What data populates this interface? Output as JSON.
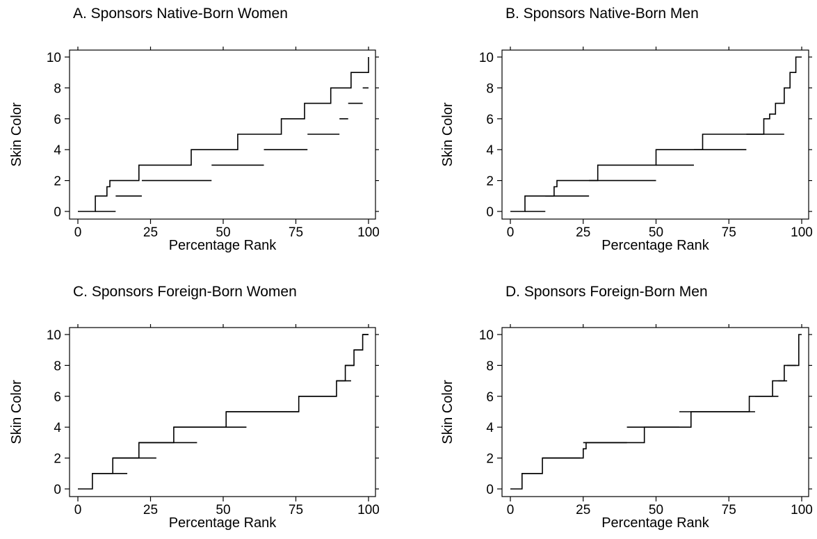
{
  "chart_data": [
    {
      "panel": "A",
      "type": "line",
      "title": "A.  Sponsors Native-Born Women",
      "xlabel": "Percentage Rank",
      "ylabel": "Skin Color",
      "xlim": [
        0,
        100
      ],
      "ylim": [
        0,
        10
      ],
      "xticks": [
        0,
        25,
        50,
        75,
        100
      ],
      "yticks": [
        0,
        2,
        4,
        6,
        8,
        10
      ],
      "series": [
        {
          "values_x": [
            0,
            6,
            6,
            10,
            10,
            11,
            11,
            21,
            21,
            39,
            39,
            55,
            55,
            70,
            70,
            78,
            78,
            87,
            87,
            94,
            94,
            100,
            100
          ],
          "values_y": [
            0,
            0,
            1,
            1,
            1.6,
            1.6,
            2,
            2,
            3,
            3,
            4,
            4,
            5,
            5,
            6,
            6,
            7,
            7,
            8,
            8,
            9,
            9,
            10
          ]
        },
        {
          "values_x": [
            6,
            13,
            13,
            22,
            22,
            46,
            46,
            64,
            64,
            79,
            79,
            90,
            90,
            93,
            93,
            98,
            98,
            100
          ],
          "values_y": [
            0,
            0,
            1,
            1,
            2,
            2,
            3,
            3,
            4,
            4,
            5,
            5,
            6,
            6,
            7,
            7,
            8,
            8
          ]
        }
      ]
    },
    {
      "panel": "B",
      "type": "line",
      "title": "B.  Sponsors Native-Born Men",
      "xlabel": "Percentage Rank",
      "ylabel": "Skin Color",
      "xlim": [
        0,
        100
      ],
      "ylim": [
        0,
        10
      ],
      "xticks": [
        0,
        25,
        50,
        75,
        100
      ],
      "yticks": [
        0,
        2,
        4,
        6,
        8,
        10
      ],
      "series": [
        {
          "values_x": [
            0,
            5,
            5,
            15,
            15,
            16,
            16,
            30,
            30,
            50,
            50,
            66,
            66,
            87,
            87,
            89,
            89,
            91,
            91,
            94,
            94,
            96,
            96,
            98,
            98,
            100
          ],
          "values_y": [
            0,
            0,
            1,
            1,
            1.6,
            1.6,
            2,
            2,
            3,
            3,
            4,
            4,
            5,
            5,
            6,
            6,
            6.3,
            6.3,
            7,
            7,
            8,
            8,
            9,
            9,
            10,
            10
          ]
        },
        {
          "values_x": [
            5,
            12,
            12,
            27,
            27,
            50,
            50,
            63,
            63,
            81,
            81,
            94
          ],
          "values_y": [
            0,
            0,
            1,
            1,
            2,
            2,
            3,
            3,
            4,
            4,
            5,
            5
          ]
        }
      ]
    },
    {
      "panel": "C",
      "type": "line",
      "title": "C.  Sponsors Foreign-Born Women",
      "xlabel": "Percentage Rank",
      "ylabel": "Skin Color",
      "xlim": [
        0,
        100
      ],
      "ylim": [
        0,
        10
      ],
      "xticks": [
        0,
        25,
        50,
        75,
        100
      ],
      "yticks": [
        0,
        2,
        4,
        6,
        8,
        10
      ],
      "series": [
        {
          "values_x": [
            0,
            5,
            5,
            12,
            12,
            21,
            21,
            33,
            33,
            51,
            51,
            76,
            76,
            89,
            89,
            92,
            92,
            95,
            95,
            98,
            98,
            100
          ],
          "values_y": [
            0,
            0,
            1,
            1,
            2,
            2,
            3,
            3,
            4,
            4,
            5,
            5,
            6,
            6,
            7,
            7,
            8,
            8,
            9,
            9,
            10,
            10
          ]
        },
        {
          "values_x": [
            5,
            17,
            12,
            27,
            21,
            41,
            33,
            58,
            51,
            76,
            76,
            89,
            89,
            94,
            92,
            95,
            95,
            98,
            98,
            100
          ],
          "values_y": [
            1,
            1,
            2,
            2,
            3,
            3,
            4,
            4,
            5,
            5,
            6,
            6,
            7,
            7,
            8,
            8,
            9,
            9,
            10,
            10
          ]
        }
      ]
    },
    {
      "panel": "D",
      "type": "line",
      "title": "D.  Sponsors Foreign-Born Men",
      "xlabel": "Percentage Rank",
      "ylabel": "Skin Color",
      "xlim": [
        0,
        100
      ],
      "ylim": [
        0,
        10
      ],
      "xticks": [
        0,
        25,
        50,
        75,
        100
      ],
      "yticks": [
        0,
        2,
        4,
        6,
        8,
        10
      ],
      "series": [
        {
          "values_x": [
            0,
            4,
            4,
            11,
            11,
            25,
            25,
            26,
            26,
            46,
            46,
            62,
            62,
            82,
            82,
            90,
            90,
            94,
            94,
            99,
            99,
            100
          ],
          "values_y": [
            0,
            0,
            1,
            1,
            2,
            2,
            2.6,
            2.6,
            3,
            3,
            4,
            4,
            5,
            5,
            6,
            6,
            7,
            7,
            8,
            8,
            10,
            10
          ]
        },
        {
          "values_x": [
            4,
            11,
            11,
            24,
            25,
            40,
            40,
            58,
            58,
            84,
            84,
            92,
            92,
            95,
            95,
            98
          ],
          "values_y": [
            1,
            1,
            2,
            2,
            3,
            3,
            4,
            4,
            5,
            5,
            6,
            6,
            7,
            7,
            8,
            8
          ]
        }
      ]
    }
  ]
}
